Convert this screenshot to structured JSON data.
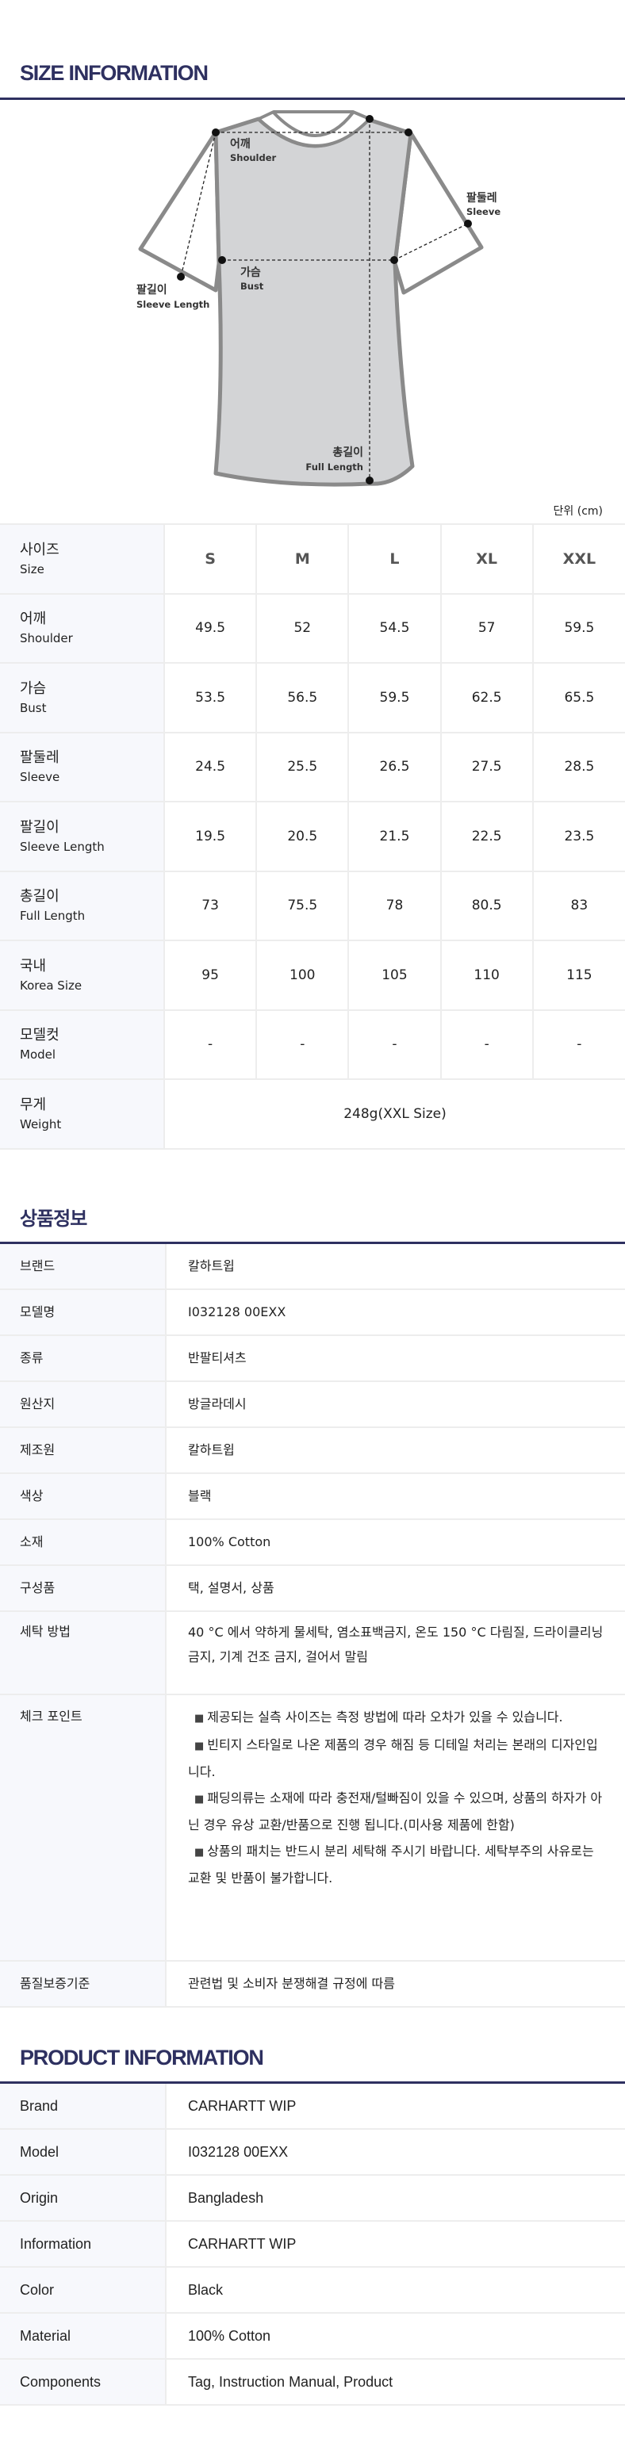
{
  "size_section": {
    "title": "SIZE INFORMATION",
    "diagram_labels": {
      "shoulder_ko": "어깨",
      "shoulder_en": "Shoulder",
      "sleeve_ko": "팔둘레",
      "sleeve_en": "Sleeve",
      "bust_ko": "가슴",
      "bust_en": "Bust",
      "sleeve_length_ko": "팔길이",
      "sleeve_length_en": "Sleeve Length",
      "full_length_ko": "총길이",
      "full_length_en": "Full Length"
    },
    "unit": "단위 (cm)",
    "header": {
      "ko": "사이즈",
      "en": "Size",
      "sizes": [
        "S",
        "M",
        "L",
        "XL",
        "XXL"
      ]
    },
    "rows": [
      {
        "ko": "어깨",
        "en": "Shoulder",
        "values": [
          "49.5",
          "52",
          "54.5",
          "57",
          "59.5"
        ]
      },
      {
        "ko": "가슴",
        "en": "Bust",
        "values": [
          "53.5",
          "56.5",
          "59.5",
          "62.5",
          "65.5"
        ]
      },
      {
        "ko": "팔둘레",
        "en": "Sleeve",
        "values": [
          "24.5",
          "25.5",
          "26.5",
          "27.5",
          "28.5"
        ]
      },
      {
        "ko": "팔길이",
        "en": "Sleeve Length",
        "values": [
          "19.5",
          "20.5",
          "21.5",
          "22.5",
          "23.5"
        ]
      },
      {
        "ko": "총길이",
        "en": "Full Length",
        "values": [
          "73",
          "75.5",
          "78",
          "80.5",
          "83"
        ]
      },
      {
        "ko": "국내",
        "en": "Korea Size",
        "values": [
          "95",
          "100",
          "105",
          "110",
          "115"
        ]
      },
      {
        "ko": "모델컷",
        "en": "Model",
        "values": [
          "-",
          "-",
          "-",
          "-",
          "-"
        ]
      }
    ],
    "weight": {
      "ko": "무게",
      "en": "Weight",
      "value": "248g(XXL Size)"
    }
  },
  "kr_info": {
    "title": "상품정보",
    "rows": [
      {
        "label": "브랜드",
        "value": "칼하트윕"
      },
      {
        "label": "모델명",
        "value": "I032128 00EXX"
      },
      {
        "label": "종류",
        "value": "반팔티셔츠"
      },
      {
        "label": "원산지",
        "value": "방글라데시"
      },
      {
        "label": "제조원",
        "value": "칼하트윕"
      },
      {
        "label": "색상",
        "value": "블랙"
      },
      {
        "label": "소재",
        "value": "100% Cotton"
      },
      {
        "label": "구성품",
        "value": "택, 설명서, 상품"
      }
    ],
    "wash": {
      "label": "세탁 방법",
      "value": "40 °C 에서 약하게 물세탁, 염소표백금지, 온도 150 °C 다림질, 드라이클리닝 금지, 기계 건조 금지, 걸어서 말림"
    },
    "check": {
      "label": "체크 포인트",
      "bullet_icon": "black-square",
      "items": [
        "제공되는 실측 사이즈는 측정 방법에 따라 오차가 있을 수 있습니다.",
        "빈티지 스타일로 나온 제품의 경우 해짐 등 디테일 처리는 본래의 디자인입니다.",
        "패딩의류는 소재에 따라 충전재/털빠짐이 있을 수 있으며, 상품의 하자가 아닌 경우 유상 교환/반품으로 진행 됩니다.(미사용 제품에 한함)",
        "상품의 패치는 반드시 분리 세탁해 주시기 바랍니다. 세탁부주의 사유로는 교환 및 반품이 불가합니다."
      ]
    },
    "quality": {
      "label": "품질보증기준",
      "value": "관련법 및 소비자 분쟁해결 규정에 따름"
    }
  },
  "en_info": {
    "title": "PRODUCT INFORMATION",
    "rows": [
      {
        "label": "Brand",
        "value": "CARHARTT WIP"
      },
      {
        "label": "Model",
        "value": "I032128 00EXX"
      },
      {
        "label": "Origin",
        "value": "Bangladesh"
      },
      {
        "label": "Information",
        "value": "CARHARTT WIP"
      },
      {
        "label": "Color",
        "value": "Black"
      },
      {
        "label": "Material",
        "value": "100% Cotton"
      },
      {
        "label": "Components",
        "value": "Tag, Instruction Manual, Product"
      }
    ]
  },
  "colors": {
    "accent": "#2e3060",
    "label_bg": "#f7f8fc",
    "border": "#ededed",
    "garment_fill": "#d3d4d6",
    "garment_stroke": "#8a8a8a"
  }
}
